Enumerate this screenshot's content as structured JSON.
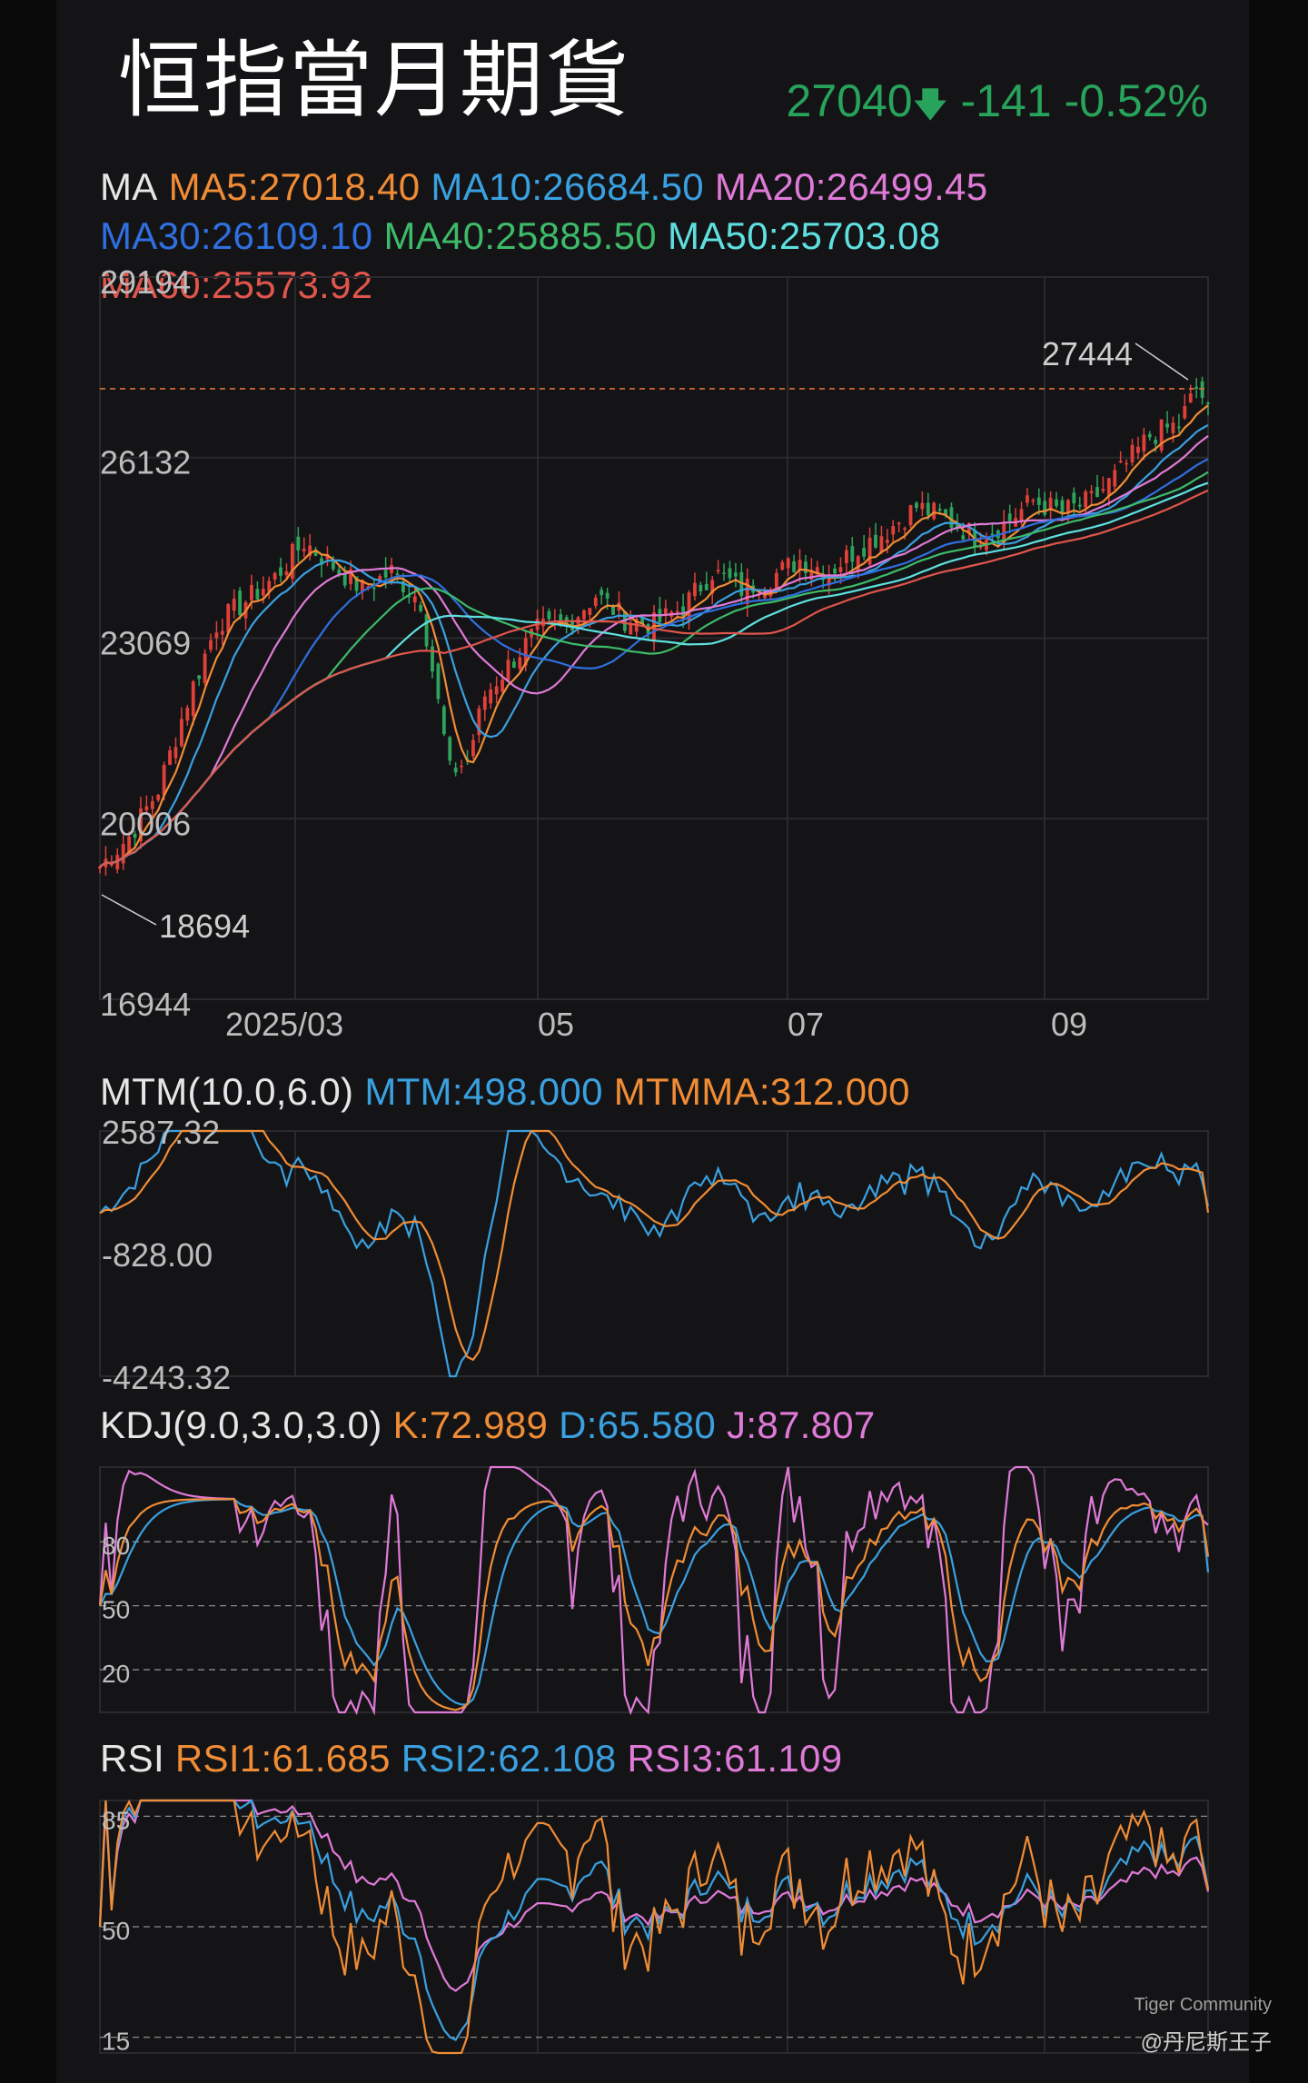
{
  "title": "恒指當月期貨",
  "quote": {
    "price": "27040",
    "arrow": "🡇",
    "change": "-141",
    "change_pct": "-0.52%"
  },
  "colors": {
    "up": "#e0403a",
    "down": "#2ea35c",
    "ma5": "#f08c35",
    "ma10": "#3aa0e0",
    "ma20": "#e07ad8",
    "ma30": "#2f6fe0",
    "ma40": "#3dbb6a",
    "ma50": "#5fe0e0",
    "ma60": "#e0554c",
    "dashed_price": "#e0703a",
    "grid": "#2a2a2e",
    "axis_text": "#bdbdbd"
  },
  "ma_header": {
    "label": "MA",
    "items": [
      {
        "text": "MA5:27018.40",
        "color": "#f08c35"
      },
      {
        "text": "MA10:26684.50",
        "color": "#3aa0e0"
      },
      {
        "text": "MA20:26499.45",
        "color": "#e07ad8"
      },
      {
        "text": "MA30:26109.10",
        "color": "#2f6fe0"
      },
      {
        "text": "MA40:25885.50",
        "color": "#3dbb6a"
      },
      {
        "text": "MA50:25703.08",
        "color": "#5fe0e0"
      },
      {
        "text": "MA60:25573.92",
        "color": "#e0554c"
      }
    ]
  },
  "mtm_header": {
    "label": "MTM(10.0,6.0)",
    "mtm": "MTM:498.000",
    "mtmma": "MTMMA:312.000"
  },
  "kdj_header": {
    "label": "KDJ(9.0,3.0,3.0)",
    "k": "K:72.989",
    "d": "D:65.580",
    "j": "J:87.807"
  },
  "rsi_header": {
    "label": "RSI",
    "rsi1": "RSI1:61.685",
    "rsi2": "RSI2:62.108",
    "rsi3": "RSI3:61.109"
  },
  "footer": {
    "brand": "Tiger Community",
    "user": "@丹尼斯王子"
  },
  "chart_data": [
    {
      "type": "candlestick",
      "name": "price",
      "y_ticks": [
        "29194",
        "26132",
        "23069",
        "20006",
        "16944"
      ],
      "x_ticks": [
        "2025/03",
        "05",
        "07",
        "09"
      ],
      "ylim": [
        16944,
        29194
      ],
      "annotations": {
        "high": "27444",
        "low": "18694"
      },
      "close_points": [
        [
          0,
          19200
        ],
        [
          5,
          19700
        ],
        [
          10,
          20500
        ],
        [
          15,
          22000
        ],
        [
          20,
          23300
        ],
        [
          25,
          23700
        ],
        [
          30,
          24100
        ],
        [
          35,
          24700
        ],
        [
          40,
          24300
        ],
        [
          45,
          23900
        ],
        [
          50,
          24200
        ],
        [
          55,
          23700
        ],
        [
          60,
          20800
        ],
        [
          63,
          21000
        ],
        [
          66,
          22100
        ],
        [
          70,
          22600
        ],
        [
          75,
          23200
        ],
        [
          80,
          23300
        ],
        [
          85,
          23800
        ],
        [
          90,
          23400
        ],
        [
          95,
          23300
        ],
        [
          100,
          23600
        ],
        [
          105,
          24200
        ],
        [
          110,
          23900
        ],
        [
          115,
          24100
        ],
        [
          120,
          24400
        ],
        [
          125,
          24200
        ],
        [
          130,
          24600
        ],
        [
          135,
          24900
        ],
        [
          140,
          25300
        ],
        [
          145,
          25100
        ],
        [
          150,
          24800
        ],
        [
          155,
          25000
        ],
        [
          160,
          25400
        ],
        [
          165,
          25200
        ],
        [
          170,
          25400
        ],
        [
          175,
          25900
        ],
        [
          180,
          26500
        ],
        [
          185,
          26700
        ],
        [
          188,
          27300
        ],
        [
          190,
          27040
        ]
      ],
      "ma_last": {
        "MA5": 27018.4,
        "MA10": 26684.5,
        "MA20": 26499.45,
        "MA30": 26109.1,
        "MA40": 25885.5,
        "MA50": 25703.08,
        "MA60": 25573.92
      }
    },
    {
      "type": "line",
      "name": "MTM",
      "y_ticks": [
        "2587.32",
        "-828.00",
        "-4243.32"
      ],
      "ylim": [
        -4243.32,
        2587.32
      ],
      "series": [
        {
          "name": "MTM",
          "last": 498.0
        },
        {
          "name": "MTMMA",
          "last": 312.0
        }
      ]
    },
    {
      "type": "line",
      "name": "KDJ",
      "y_ticks": [
        "80",
        "50",
        "20"
      ],
      "ylim": [
        0,
        115
      ],
      "series": [
        {
          "name": "K",
          "last": 72.989
        },
        {
          "name": "D",
          "last": 65.58
        },
        {
          "name": "J",
          "last": 87.807
        }
      ]
    },
    {
      "type": "line",
      "name": "RSI",
      "y_ticks": [
        "85",
        "50",
        "15"
      ],
      "ylim": [
        10,
        90
      ],
      "series": [
        {
          "name": "RSI1",
          "last": 61.685
        },
        {
          "name": "RSI2",
          "last": 62.108
        },
        {
          "name": "RSI3",
          "last": 61.109
        }
      ]
    }
  ]
}
